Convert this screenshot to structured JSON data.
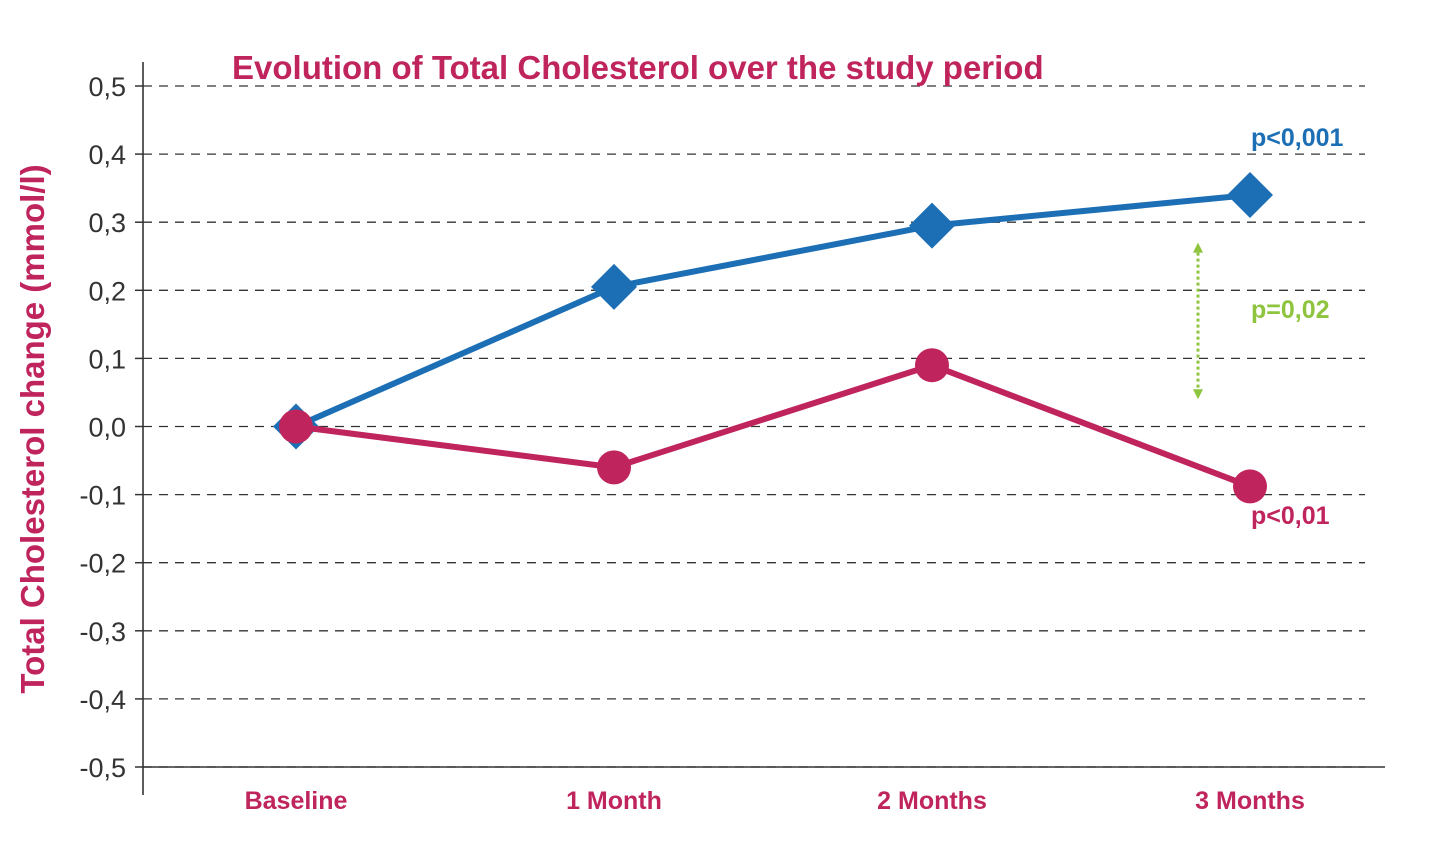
{
  "chart_data": {
    "type": "line",
    "title_parts": [
      {
        "text": "Evolution of ",
        "bold": false
      },
      {
        "text": "Total Cholesterol",
        "bold": true
      },
      {
        "text": " over the study period",
        "bold": false
      }
    ],
    "ylabel": "Total Cholesterol change (mmol/l)",
    "xlabel": "",
    "categories": [
      "Baseline",
      "1 Month",
      "2 Months",
      "3 Months"
    ],
    "ylim": [
      -0.5,
      0.5
    ],
    "yticks": [
      0.5,
      0.4,
      0.3,
      0.2,
      0.1,
      0.0,
      -0.1,
      -0.2,
      -0.3,
      -0.4,
      -0.5
    ],
    "ytick_labels": [
      "0,5",
      "0,4",
      "0,3",
      "0,2",
      "0,1",
      "0,0",
      "-0,1",
      "-0,2",
      "-0,3",
      "-0,4",
      "-0,5"
    ],
    "grid": "horizontal-dashed",
    "legend": "none",
    "series": [
      {
        "values": [
          0.0,
          0.205,
          0.295,
          0.34
        ],
        "color": "#1c6fb5",
        "marker": "diamond",
        "end_label": "p<0,001"
      },
      {
        "values": [
          0.0,
          -0.06,
          0.09,
          -0.088
        ],
        "color": "#c0245d",
        "marker": "circle",
        "end_label": "p<0,01"
      }
    ],
    "annotations": [
      {
        "type": "double-arrow",
        "category": "3 Months",
        "from": 0.27,
        "to": 0.04,
        "color": "#8ec43e",
        "label": "p=0,02"
      }
    ],
    "colors": {
      "title": "#c0245d",
      "axis_label": "#c0245d",
      "category_label": "#c0245d",
      "tick_label": "#333333",
      "grid": "#333333",
      "axis": "#333333"
    }
  }
}
